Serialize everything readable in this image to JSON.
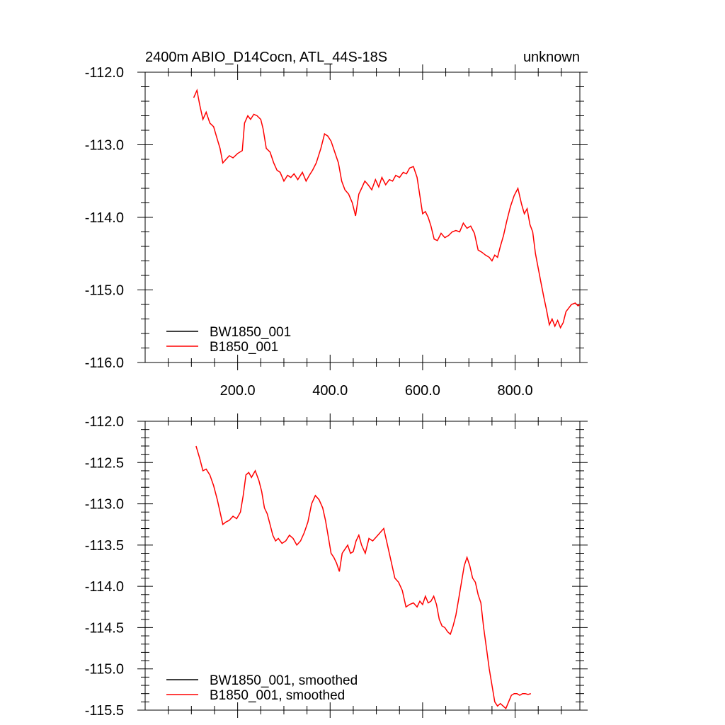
{
  "title_left": "2400m ABIO_D14Cocn, ATL_44S-18S",
  "title_right": "unknown",
  "colors": {
    "BW1850_001": "#000000",
    "B1850_001": "#ff0000"
  },
  "chart_data": [
    {
      "type": "line",
      "xlim": [
        0,
        940
      ],
      "ylim": [
        -116,
        -112
      ],
      "xticks": [
        200,
        400,
        600,
        800
      ],
      "xtick_labels": [
        "200.0",
        "400.0",
        "600.0",
        "800.0"
      ],
      "yticks": [
        -112,
        -113,
        -114,
        -115,
        -116
      ],
      "ytick_labels": [
        "-112.0",
        "-113.0",
        "-114.0",
        "-115.0",
        "-116.0"
      ],
      "legend": [
        "BW1850_001",
        "B1850_001"
      ],
      "legend_location": "bottom-left",
      "series": [
        {
          "name": "B1850_001",
          "color": "#ff0000",
          "x": [
            105,
            112,
            118,
            125,
            132,
            140,
            148,
            155,
            162,
            168,
            175,
            182,
            190,
            200,
            210,
            215,
            222,
            228,
            235,
            242,
            250,
            255,
            262,
            270,
            278,
            285,
            292,
            300,
            308,
            315,
            322,
            330,
            340,
            348,
            355,
            362,
            370,
            380,
            388,
            395,
            402,
            410,
            418,
            425,
            432,
            440,
            448,
            455,
            462,
            468,
            475,
            482,
            490,
            498,
            505,
            512,
            520,
            528,
            535,
            542,
            550,
            558,
            565,
            572,
            580,
            588,
            594,
            600,
            606,
            612,
            618,
            625,
            632,
            640,
            648,
            656,
            664,
            672,
            680,
            688,
            696,
            704,
            712,
            720,
            728,
            736,
            744,
            750,
            756,
            762,
            768,
            775,
            782,
            790,
            798,
            806,
            814,
            820,
            826,
            832,
            838,
            844,
            850,
            856,
            862,
            868,
            874,
            880,
            886,
            892,
            898,
            904,
            910,
            916,
            922,
            930,
            936,
            940
          ],
          "y": [
            -112.35,
            -112.25,
            -112.45,
            -112.65,
            -112.55,
            -112.7,
            -112.75,
            -112.9,
            -113.05,
            -113.25,
            -113.2,
            -113.15,
            -113.18,
            -113.12,
            -113.08,
            -112.7,
            -112.6,
            -112.65,
            -112.58,
            -112.6,
            -112.65,
            -112.78,
            -113.05,
            -113.1,
            -113.25,
            -113.35,
            -113.38,
            -113.5,
            -113.42,
            -113.45,
            -113.4,
            -113.48,
            -113.38,
            -113.5,
            -113.42,
            -113.35,
            -113.25,
            -113.05,
            -112.85,
            -112.88,
            -112.95,
            -113.1,
            -113.25,
            -113.5,
            -113.62,
            -113.68,
            -113.8,
            -113.98,
            -113.68,
            -113.6,
            -113.5,
            -113.55,
            -113.62,
            -113.48,
            -113.58,
            -113.45,
            -113.55,
            -113.48,
            -113.5,
            -113.42,
            -113.45,
            -113.38,
            -113.4,
            -113.32,
            -113.3,
            -113.45,
            -113.7,
            -113.95,
            -113.92,
            -114.0,
            -114.12,
            -114.3,
            -114.32,
            -114.22,
            -114.28,
            -114.25,
            -114.2,
            -114.18,
            -114.2,
            -114.08,
            -114.15,
            -114.12,
            -114.22,
            -114.45,
            -114.48,
            -114.52,
            -114.55,
            -114.6,
            -114.52,
            -114.55,
            -114.4,
            -114.25,
            -114.05,
            -113.85,
            -113.7,
            -113.6,
            -113.82,
            -113.95,
            -113.88,
            -114.1,
            -114.2,
            -114.5,
            -114.7,
            -114.9,
            -115.1,
            -115.28,
            -115.48,
            -115.4,
            -115.5,
            -115.42,
            -115.52,
            -115.45,
            -115.3,
            -115.25,
            -115.2,
            -115.18,
            -115.22,
            -115.2
          ]
        }
      ]
    },
    {
      "type": "line",
      "xlim": [
        0,
        940
      ],
      "ylim": [
        -115.5,
        -112
      ],
      "xticks": [
        200,
        400,
        600,
        800
      ],
      "yticks": [
        -112,
        -112.5,
        -113,
        -113.5,
        -114,
        -114.5,
        -115,
        -115.5
      ],
      "ytick_labels": [
        "-112.0",
        "-112.5",
        "-113.0",
        "-113.5",
        "-114.0",
        "-114.5",
        "-115.0",
        "-115.5"
      ],
      "legend": [
        "BW1850_001, smoothed",
        "B1850_001, smoothed"
      ],
      "legend_location": "bottom-left",
      "series": [
        {
          "name": "B1850_001, smoothed",
          "color": "#ff0000",
          "x": [
            110,
            118,
            125,
            132,
            140,
            148,
            156,
            162,
            168,
            175,
            182,
            190,
            198,
            206,
            212,
            218,
            224,
            230,
            238,
            246,
            252,
            258,
            264,
            270,
            276,
            282,
            288,
            296,
            304,
            312,
            320,
            328,
            336,
            344,
            352,
            360,
            368,
            376,
            384,
            390,
            396,
            402,
            408,
            414,
            420,
            426,
            432,
            438,
            444,
            450,
            456,
            462,
            468,
            476,
            484,
            492,
            500,
            508,
            516,
            524,
            532,
            540,
            548,
            556,
            564,
            572,
            580,
            588,
            594,
            600,
            606,
            612,
            618,
            624,
            630,
            636,
            642,
            648,
            654,
            660,
            666,
            672,
            678,
            684,
            690,
            696,
            702,
            708,
            714,
            720,
            726,
            732,
            738,
            744,
            750,
            756,
            762,
            768,
            774,
            780,
            786,
            792,
            798,
            804,
            810,
            816,
            822,
            828,
            834
          ],
          "y": [
            -112.3,
            -112.45,
            -112.6,
            -112.58,
            -112.65,
            -112.78,
            -112.95,
            -113.1,
            -113.25,
            -113.22,
            -113.2,
            -113.15,
            -113.18,
            -113.1,
            -112.9,
            -112.65,
            -112.62,
            -112.68,
            -112.6,
            -112.72,
            -112.85,
            -113.05,
            -113.12,
            -113.25,
            -113.38,
            -113.45,
            -113.42,
            -113.48,
            -113.45,
            -113.38,
            -113.42,
            -113.5,
            -113.45,
            -113.35,
            -113.22,
            -113.0,
            -112.9,
            -112.95,
            -113.05,
            -113.2,
            -113.4,
            -113.6,
            -113.65,
            -113.72,
            -113.82,
            -113.6,
            -113.55,
            -113.5,
            -113.6,
            -113.58,
            -113.45,
            -113.38,
            -113.5,
            -113.6,
            -113.42,
            -113.45,
            -113.4,
            -113.35,
            -113.3,
            -113.5,
            -113.7,
            -113.9,
            -113.95,
            -114.05,
            -114.25,
            -114.22,
            -114.2,
            -114.25,
            -114.18,
            -114.22,
            -114.12,
            -114.2,
            -114.18,
            -114.12,
            -114.22,
            -114.4,
            -114.48,
            -114.5,
            -114.55,
            -114.58,
            -114.48,
            -114.35,
            -114.15,
            -113.95,
            -113.75,
            -113.65,
            -113.75,
            -113.9,
            -113.95,
            -114.1,
            -114.2,
            -114.5,
            -114.75,
            -115.0,
            -115.2,
            -115.4,
            -115.45,
            -115.42,
            -115.45,
            -115.48,
            -115.4,
            -115.32,
            -115.3,
            -115.3,
            -115.32,
            -115.3,
            -115.3,
            -115.31,
            -115.3
          ]
        }
      ]
    }
  ]
}
